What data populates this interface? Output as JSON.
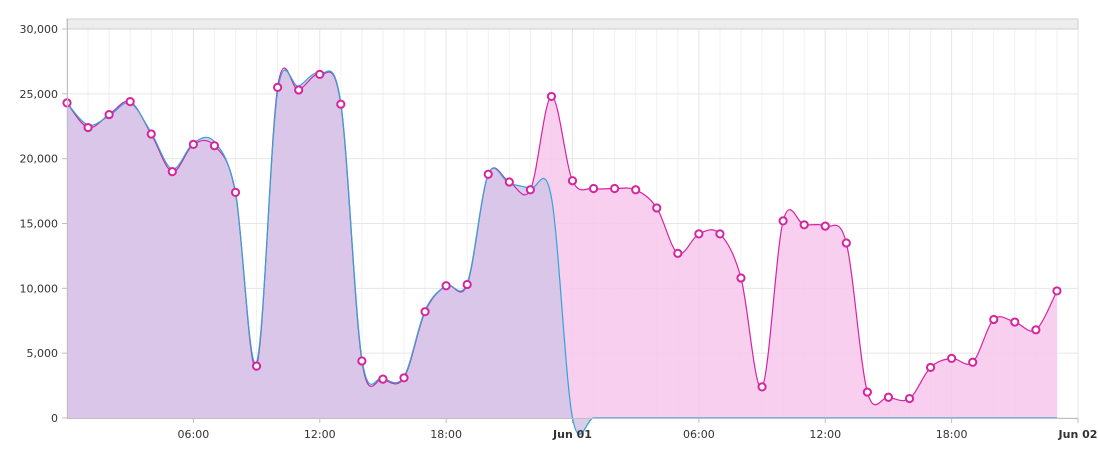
{
  "chart_data": {
    "type": "area",
    "title": "",
    "xlabel": "",
    "ylabel": "",
    "ylim": [
      0,
      30000
    ],
    "yticks": [
      0,
      5000,
      10000,
      15000,
      20000,
      25000,
      30000
    ],
    "ytick_labels": [
      "0",
      "5,000",
      "10,000",
      "15,000",
      "20,000",
      "25,000",
      "30,000"
    ],
    "xlim": [
      "2015-05-31T00:00",
      "2015-06-02T00:00"
    ],
    "xtick_labels": [
      {
        "t": "2015-05-31T06:00",
        "label": "06:00",
        "bold": false
      },
      {
        "t": "2015-05-31T12:00",
        "label": "12:00",
        "bold": false
      },
      {
        "t": "2015-05-31T18:00",
        "label": "18:00",
        "bold": false
      },
      {
        "t": "2015-06-01T00:00",
        "label": "Jun 01",
        "bold": true
      },
      {
        "t": "2015-06-01T06:00",
        "label": "06:00",
        "bold": false
      },
      {
        "t": "2015-06-01T12:00",
        "label": "12:00",
        "bold": false
      },
      {
        "t": "2015-06-01T18:00",
        "label": "18:00",
        "bold": false
      },
      {
        "t": "2015-06-02T00:00",
        "label": "Jun 02",
        "bold": true
      }
    ],
    "grid": true,
    "legend": "none",
    "series": [
      {
        "fill": "#f7c7ec",
        "stroke": "#d6249f",
        "marker_stroke": "#d6249f",
        "markers": true,
        "x": [
          "2015-05-31T00:00",
          "2015-05-31T01:00",
          "2015-05-31T02:00",
          "2015-05-31T03:00",
          "2015-05-31T04:00",
          "2015-05-31T05:00",
          "2015-05-31T06:00",
          "2015-05-31T07:00",
          "2015-05-31T08:00",
          "2015-05-31T09:00",
          "2015-05-31T10:00",
          "2015-05-31T11:00",
          "2015-05-31T12:00",
          "2015-05-31T13:00",
          "2015-05-31T14:00",
          "2015-05-31T15:00",
          "2015-05-31T16:00",
          "2015-05-31T17:00",
          "2015-05-31T18:00",
          "2015-05-31T19:00",
          "2015-05-31T20:00",
          "2015-05-31T21:00",
          "2015-05-31T22:00",
          "2015-05-31T23:00",
          "2015-06-01T00:00",
          "2015-06-01T01:00",
          "2015-06-01T02:00",
          "2015-06-01T03:00",
          "2015-06-01T04:00",
          "2015-06-01T05:00",
          "2015-06-01T06:00",
          "2015-06-01T07:00",
          "2015-06-01T08:00",
          "2015-06-01T09:00",
          "2015-06-01T10:00",
          "2015-06-01T11:00",
          "2015-06-01T12:00",
          "2015-06-01T13:00",
          "2015-06-01T14:00",
          "2015-06-01T15:00",
          "2015-06-01T16:00",
          "2015-06-01T17:00",
          "2015-06-01T18:00",
          "2015-06-01T19:00",
          "2015-06-01T20:00",
          "2015-06-01T21:00",
          "2015-06-01T22:00",
          "2015-06-01T23:00"
        ],
        "values": [
          24300,
          22400,
          23400,
          24400,
          21900,
          19000,
          21100,
          21000,
          17400,
          4000,
          25500,
          25300,
          26500,
          24200,
          4400,
          3000,
          3100,
          8200,
          10200,
          10300,
          18800,
          18200,
          17600,
          24800,
          18300,
          17700,
          17700,
          17600,
          16200,
          12700,
          14200,
          14200,
          10800,
          2400,
          15200,
          14900,
          14800,
          13500,
          2000,
          1600,
          1500,
          3900,
          4600,
          4300,
          7600,
          7400,
          6800,
          9800
        ]
      },
      {
        "fill": "#d3c4e6",
        "stroke": "#2fa6d6",
        "markers": false,
        "x": [
          "2015-05-31T00:00",
          "2015-05-31T01:00",
          "2015-05-31T02:00",
          "2015-05-31T03:00",
          "2015-05-31T04:00",
          "2015-05-31T05:00",
          "2015-05-31T06:00",
          "2015-05-31T07:00",
          "2015-05-31T08:00",
          "2015-05-31T09:00",
          "2015-05-31T10:00",
          "2015-05-31T11:00",
          "2015-05-31T12:00",
          "2015-05-31T13:00",
          "2015-05-31T14:00",
          "2015-05-31T15:00",
          "2015-05-31T16:00",
          "2015-05-31T17:00",
          "2015-05-31T18:00",
          "2015-05-31T19:00",
          "2015-05-31T20:00",
          "2015-05-31T21:00",
          "2015-05-31T22:00",
          "2015-05-31T23:00",
          "2015-06-01T00:00",
          "2015-06-01T01:00",
          "2015-06-01T02:00",
          "2015-06-01T03:00",
          "2015-06-01T04:00",
          "2015-06-01T05:00",
          "2015-06-01T06:00",
          "2015-06-01T07:00",
          "2015-06-01T08:00",
          "2015-06-01T09:00",
          "2015-06-01T10:00",
          "2015-06-01T11:00",
          "2015-06-01T12:00",
          "2015-06-01T13:00",
          "2015-06-01T14:00",
          "2015-06-01T15:00",
          "2015-06-01T16:00",
          "2015-06-01T17:00",
          "2015-06-01T18:00",
          "2015-06-01T19:00",
          "2015-06-01T20:00",
          "2015-06-01T21:00",
          "2015-06-01T22:00",
          "2015-06-01T23:00"
        ],
        "values": [
          24300,
          22600,
          23300,
          24300,
          22000,
          19200,
          21200,
          21300,
          17300,
          4300,
          25200,
          25600,
          26600,
          24300,
          4600,
          3100,
          3200,
          8300,
          10200,
          10400,
          18800,
          18100,
          17700,
          17000,
          0,
          0,
          0,
          0,
          0,
          0,
          0,
          0,
          0,
          0,
          0,
          0,
          0,
          0,
          0,
          0,
          0,
          0,
          0,
          0,
          0,
          0,
          0,
          0
        ]
      }
    ]
  }
}
